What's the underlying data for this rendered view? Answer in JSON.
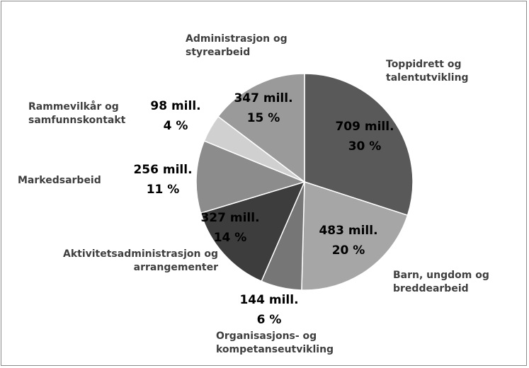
{
  "chart_data": {
    "type": "pie",
    "categories": [
      "Toppidrett og talentutvikling",
      "Barn, ungdom og breddearbeid",
      "Organisasjons- og kompetanseutvikling",
      "Aktivitetsadministrasjon og arrangementer",
      "Markedsarbeid",
      "Rammevilkår og samfunnskontakt",
      "Administrasjon og styrearbeid"
    ],
    "values": [
      709,
      483,
      144,
      327,
      256,
      98,
      347
    ],
    "value_labels": [
      "709 mill.",
      "483 mill.",
      "144 mill.",
      "327 mill.",
      "256 mill.",
      "98 mill.",
      "347 mill."
    ],
    "share_labels": [
      "30 %",
      "20 %",
      "6 %",
      "14 %",
      "11 %",
      "4 %",
      "15 %"
    ],
    "colors": [
      "#595959",
      "#a6a6a6",
      "#767676",
      "#3d3d3d",
      "#8c8c8c",
      "#d0d0d0",
      "#9a9a9a"
    ]
  }
}
